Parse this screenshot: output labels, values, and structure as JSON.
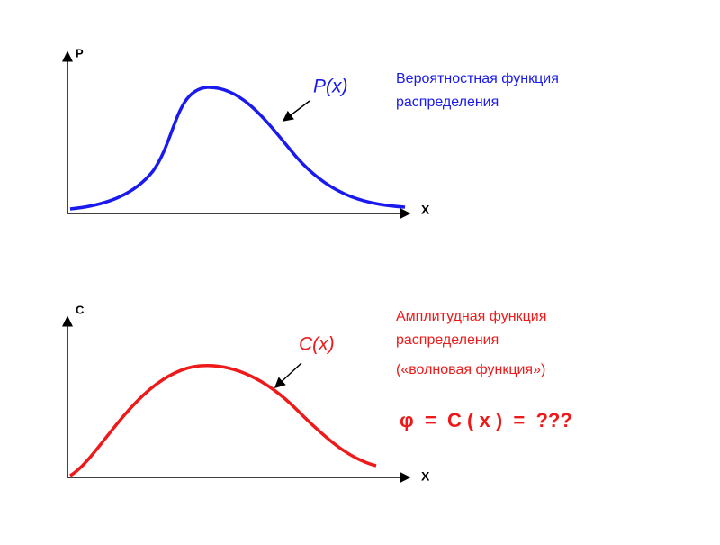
{
  "top": {
    "axis_y": "P",
    "axis_x": "X",
    "curve_label": "P(x)",
    "caption": [
      "Вероятностная функция",
      "распределения"
    ]
  },
  "bottom": {
    "axis_y": "C",
    "axis_x": "X",
    "curve_label": "C(x)",
    "caption": [
      "Амплитудная функция",
      "распределения",
      "(«волновая функция»)"
    ],
    "formula": "φ  =  C ( x )  =  ???"
  }
}
